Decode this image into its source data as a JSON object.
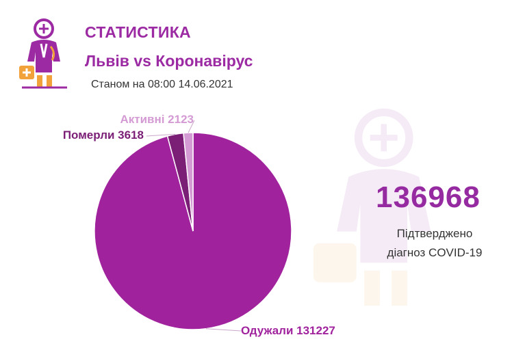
{
  "header": {
    "title": "СТАТИСТИКА",
    "subtitle": "Львів vs Коронавірус",
    "as_of": "Станом на 08:00 14.06.2021"
  },
  "summary": {
    "total": "136968",
    "caption_line1": "Підтверджено",
    "caption_line2": "діагноз COVID-19"
  },
  "logo": {
    "icon": "doctor-icon"
  },
  "colors": {
    "accent": "#9b2aa3",
    "recovered": "#a0239d",
    "deaths": "#7b1e76",
    "active": "#d49ad3",
    "logo_orange": "#f2a23a"
  },
  "chart_data": {
    "type": "pie",
    "slices": [
      {
        "label": "Одужали",
        "value": 131227,
        "display": "Одужали 131227",
        "color": "#a0239d"
      },
      {
        "label": "Померли",
        "value": 3618,
        "display": "Померли 3618",
        "color": "#7b1e76"
      },
      {
        "label": "Активні",
        "value": 2123,
        "display": "Активні 2123",
        "color": "#d49ad3"
      }
    ]
  }
}
